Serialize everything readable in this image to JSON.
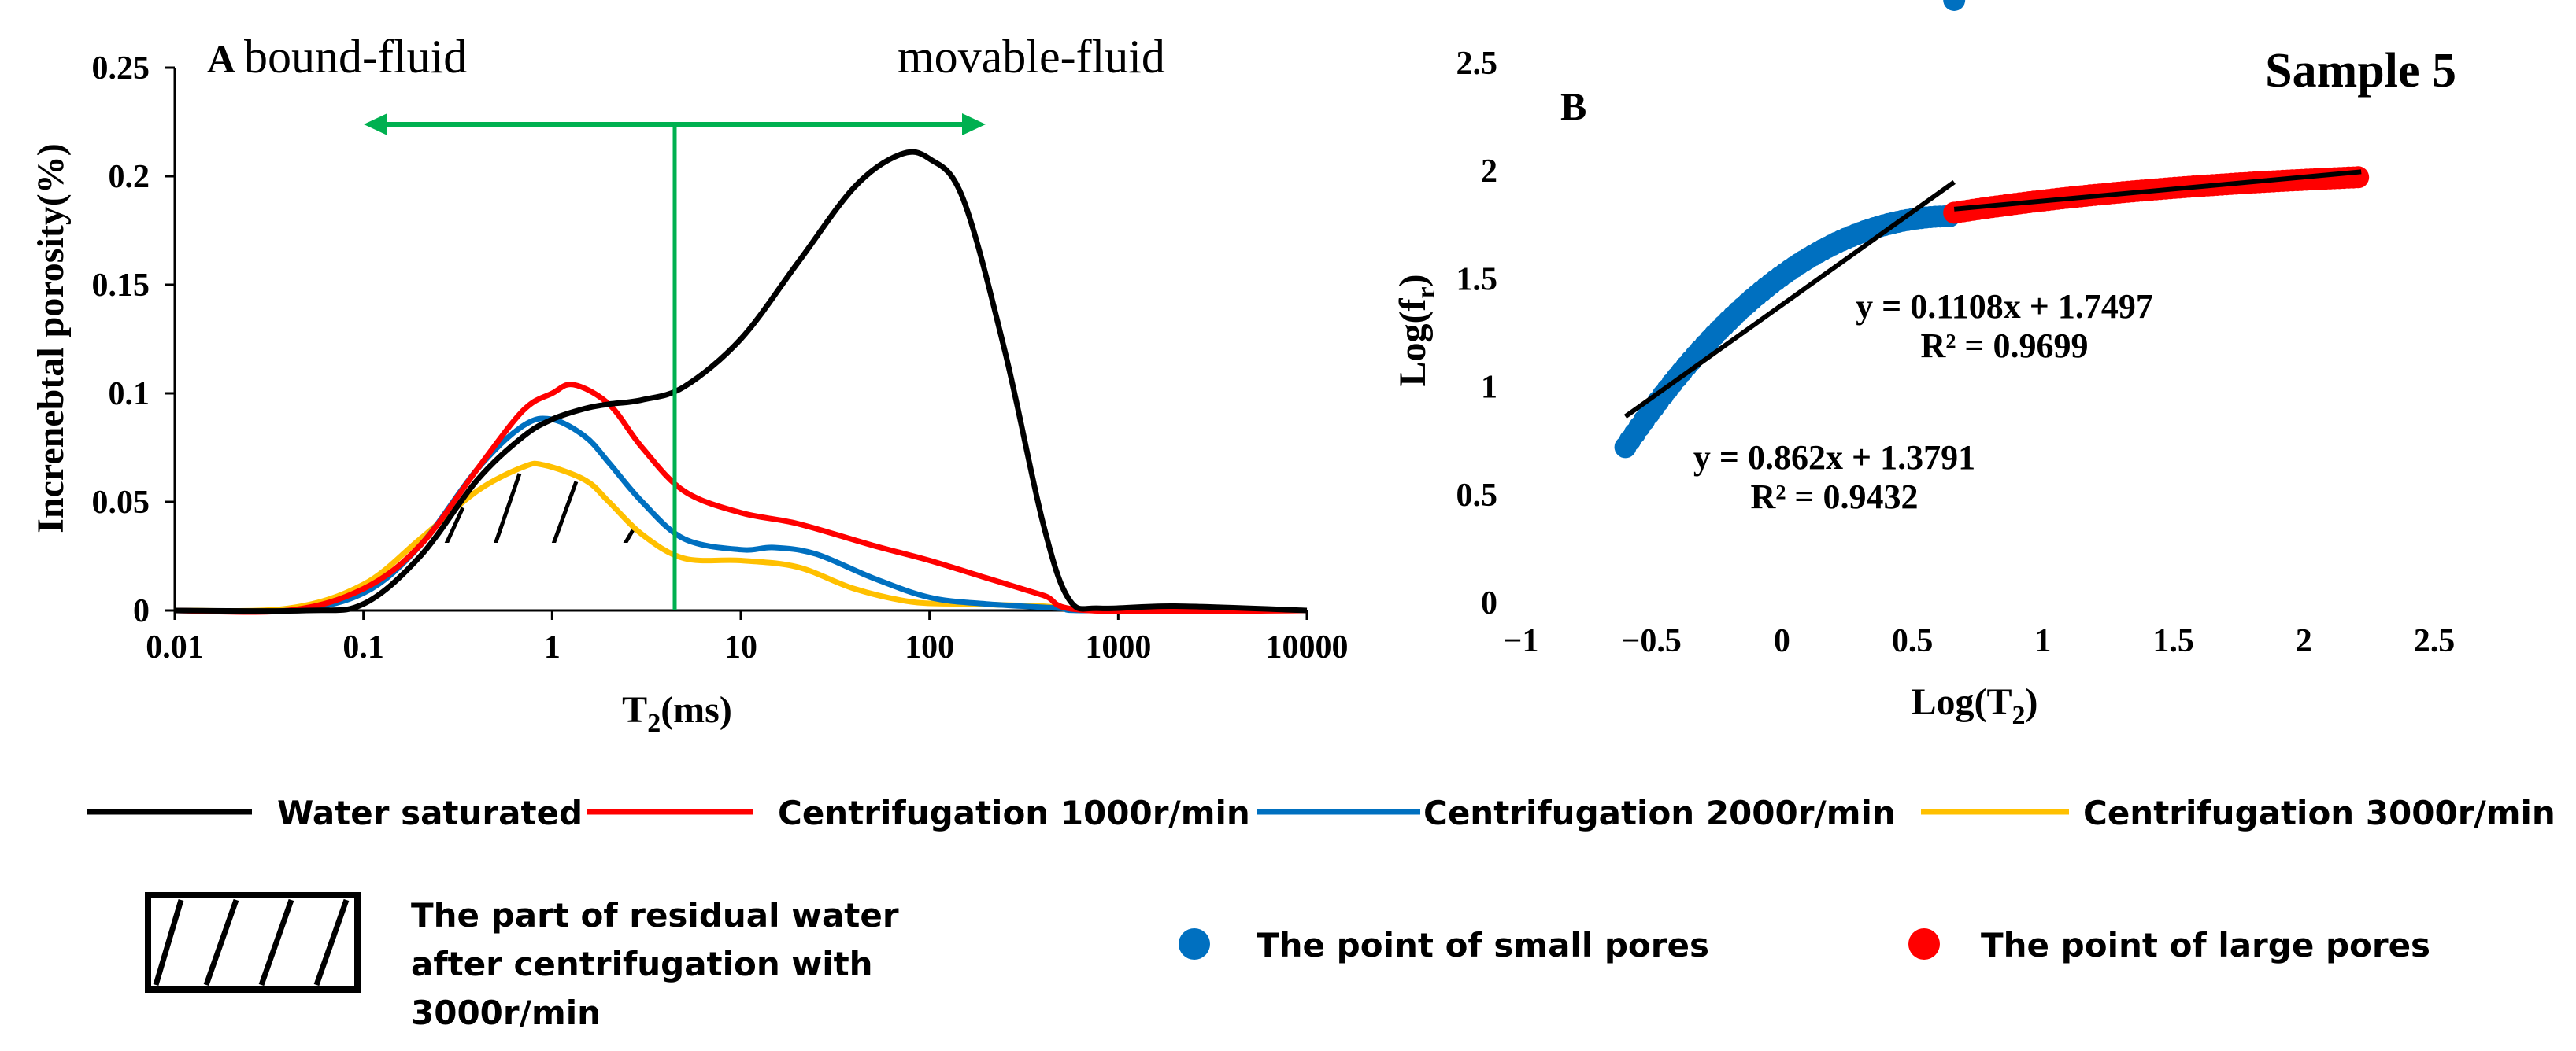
{
  "chart_data": [
    {
      "panel": "A",
      "type": "line",
      "xscale": "log",
      "xlim": [
        0.01,
        10000
      ],
      "ylim": [
        0,
        0.25
      ],
      "xticks": [
        "0.01",
        "0.1",
        "1",
        "10",
        "100",
        "1000",
        "10000"
      ],
      "yticks": [
        "0",
        "0.05",
        "0.1",
        "0.15",
        "0.2",
        "0.25"
      ],
      "xlabel": "T2(ms)",
      "ylabel": "Increnebtal porosity(%)",
      "annotations": {
        "bound_fluid": "bound-fluid",
        "movable_fluid": "movable-fluid",
        "cutoff_T2_ms": 4.5
      },
      "series": [
        {
          "name": "Water saturated",
          "color": "#000000",
          "points": [
            [
              0.01,
              0
            ],
            [
              0.05,
              0
            ],
            [
              0.1,
              0.003
            ],
            [
              0.2,
              0.025
            ],
            [
              0.4,
              0.06
            ],
            [
              0.7,
              0.08
            ],
            [
              1,
              0.088
            ],
            [
              1.5,
              0.093
            ],
            [
              2,
              0.095
            ],
            [
              3,
              0.097
            ],
            [
              5,
              0.103
            ],
            [
              10,
              0.125
            ],
            [
              20,
              0.16
            ],
            [
              40,
              0.195
            ],
            [
              70,
              0.21
            ],
            [
              100,
              0.208
            ],
            [
              150,
              0.19
            ],
            [
              250,
              0.12
            ],
            [
              400,
              0.04
            ],
            [
              550,
              0.005
            ],
            [
              800,
              0.001
            ],
            [
              2000,
              0.002
            ],
            [
              10000,
              0
            ]
          ]
        },
        {
          "name": "Centrifugation 1000r/min",
          "color": "#ff0000",
          "points": [
            [
              0.01,
              0
            ],
            [
              0.04,
              0
            ],
            [
              0.1,
              0.01
            ],
            [
              0.2,
              0.03
            ],
            [
              0.4,
              0.065
            ],
            [
              0.7,
              0.092
            ],
            [
              1,
              0.1
            ],
            [
              1.3,
              0.104
            ],
            [
              2,
              0.095
            ],
            [
              3,
              0.075
            ],
            [
              5,
              0.055
            ],
            [
              10,
              0.045
            ],
            [
              20,
              0.04
            ],
            [
              50,
              0.03
            ],
            [
              100,
              0.023
            ],
            [
              200,
              0.015
            ],
            [
              400,
              0.007
            ],
            [
              700,
              0
            ],
            [
              10000,
              0
            ]
          ]
        },
        {
          "name": "Centrifugation 2000r/min",
          "color": "#0070c0",
          "points": [
            [
              0.01,
              0
            ],
            [
              0.04,
              0
            ],
            [
              0.1,
              0.008
            ],
            [
              0.2,
              0.03
            ],
            [
              0.4,
              0.065
            ],
            [
              0.7,
              0.085
            ],
            [
              1,
              0.088
            ],
            [
              1.5,
              0.08
            ],
            [
              2,
              0.068
            ],
            [
              3,
              0.05
            ],
            [
              5,
              0.033
            ],
            [
              10,
              0.028
            ],
            [
              15,
              0.029
            ],
            [
              25,
              0.026
            ],
            [
              50,
              0.015
            ],
            [
              100,
              0.006
            ],
            [
              200,
              0.003
            ],
            [
              500,
              0.001
            ],
            [
              700,
              0
            ],
            [
              10000,
              0
            ]
          ]
        },
        {
          "name": "Centrifugation 3000r/min",
          "color": "#ffc000",
          "points": [
            [
              0.01,
              0
            ],
            [
              0.04,
              0.001
            ],
            [
              0.1,
              0.012
            ],
            [
              0.2,
              0.033
            ],
            [
              0.4,
              0.055
            ],
            [
              0.7,
              0.066
            ],
            [
              0.9,
              0.067
            ],
            [
              1.5,
              0.06
            ],
            [
              2,
              0.05
            ],
            [
              3,
              0.035
            ],
            [
              5,
              0.024
            ],
            [
              10,
              0.023
            ],
            [
              20,
              0.02
            ],
            [
              40,
              0.01
            ],
            [
              80,
              0.004
            ],
            [
              150,
              0.003
            ],
            [
              400,
              0.002
            ],
            [
              800,
              0
            ],
            [
              10000,
              0
            ]
          ]
        }
      ]
    },
    {
      "panel": "B",
      "type": "scatter",
      "title": "Sample 5",
      "xlim": [
        -1,
        2.5
      ],
      "ylim": [
        0,
        2.5
      ],
      "xticks": [
        "−1",
        "−0.5",
        "0",
        "0.5",
        "1",
        "1.5",
        "2",
        "2.5"
      ],
      "yticks": [
        "0",
        "0.5",
        "1",
        "1.5",
        "2",
        "2.5"
      ],
      "xlabel": "Log(T2)",
      "ylabel": "Log(fr)",
      "series": [
        {
          "name": "The point of small pores",
          "color": "#0070c0",
          "x_range": [
            -0.6,
            0.66
          ]
        },
        {
          "name": "The point of large pores",
          "color": "#ff0000",
          "x_range": [
            0.66,
            2.22
          ]
        }
      ],
      "fits": [
        {
          "label": "y = 0.862x + 1.3791",
          "r2": "R² = 0.9432",
          "slope": 0.862,
          "intercept": 1.3791,
          "x_range": [
            -0.6,
            0.66
          ]
        },
        {
          "label": "y = 0.1108x + 1.7497",
          "r2": "R² = 0.9699",
          "slope": 0.1108,
          "intercept": 1.7497,
          "x_range": [
            0.66,
            2.22
          ]
        }
      ]
    }
  ],
  "legend": {
    "lines": [
      "Water saturated",
      "Centrifugation 1000r/min",
      "Centrifugation 2000r/min",
      "Centrifugation 3000r/min"
    ],
    "hatch_lines": [
      "The part of residual water",
      "after centrifugation with",
      "3000r/min"
    ],
    "small_pores": "The point of small pores",
    "large_pores": "The point of large pores"
  },
  "colors": {
    "arrow": "#00b050",
    "cutoff": "#00b050"
  }
}
